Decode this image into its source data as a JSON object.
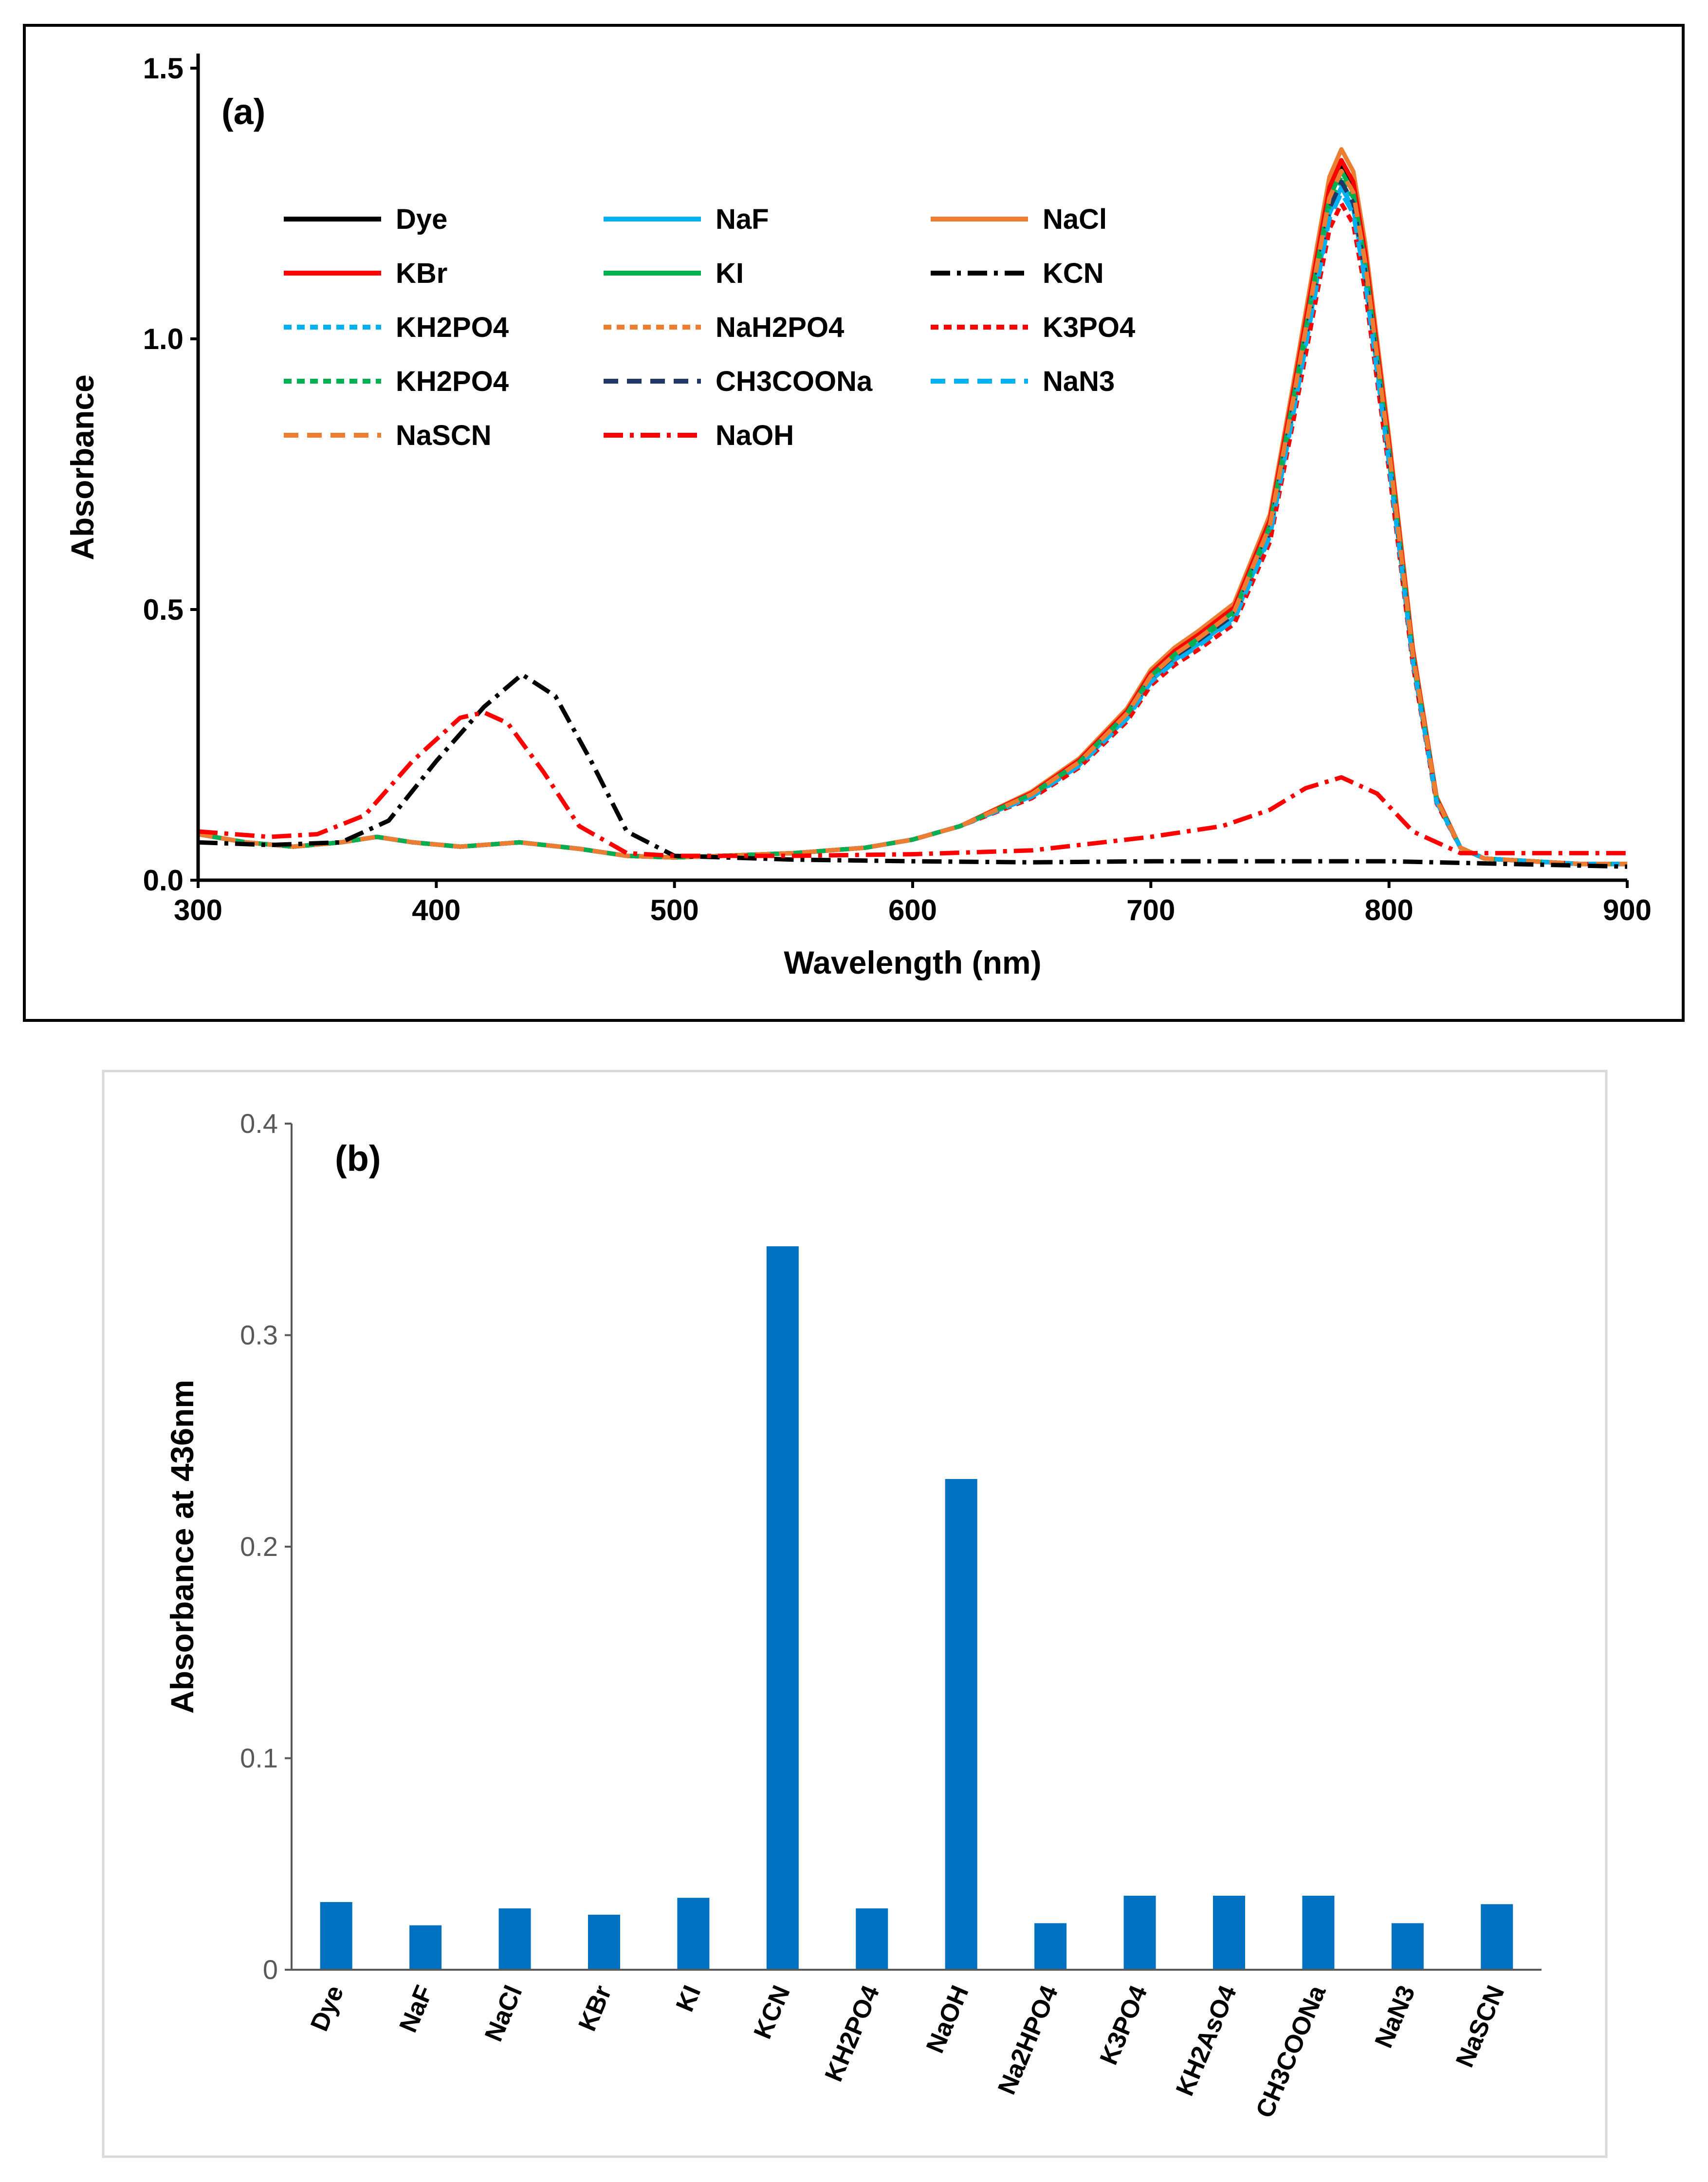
{
  "chart_data": [
    {
      "panel": "(a)",
      "type": "line",
      "title": "",
      "xlabel": "Wavelength (nm)",
      "ylabel": "Absorbance",
      "xlim": [
        300,
        900
      ],
      "ylim": [
        0,
        1.5
      ],
      "xticks": [
        300,
        400,
        500,
        600,
        700,
        800,
        900
      ],
      "xtick_labels": [
        "300",
        "400",
        "500",
        "600",
        "700",
        "800",
        "900"
      ],
      "yticks": [
        0,
        0.5,
        1.0,
        1.5
      ],
      "ytick_labels": [
        "0.0",
        "0.5",
        "1.0",
        "1.5"
      ],
      "grid": false,
      "legend_position": "top-left",
      "series": [
        {
          "name": "Dye",
          "color": "#000000",
          "dash": "solid",
          "profile": "main",
          "peak": 1.32
        },
        {
          "name": "NaF",
          "color": "#00b0f0",
          "dash": "solid",
          "profile": "main",
          "peak": 1.28
        },
        {
          "name": "NaCl",
          "color": "#ed7d31",
          "dash": "solid",
          "profile": "main",
          "peak": 1.35
        },
        {
          "name": "KBr",
          "color": "#ff0000",
          "dash": "solid",
          "profile": "main",
          "peak": 1.33
        },
        {
          "name": "KI",
          "color": "#00b050",
          "dash": "solid",
          "profile": "main",
          "peak": 1.31
        },
        {
          "name": "KCN",
          "color": "#000000",
          "dash": "dashdot",
          "profile": "kcn",
          "peak": 0.38
        },
        {
          "name": "KH2PO4",
          "color": "#00b0f0",
          "dash": "dot",
          "profile": "main",
          "peak": 1.29
        },
        {
          "name": "NaH2PO4",
          "color": "#ed7d31",
          "dash": "dot",
          "profile": "main",
          "peak": 1.3
        },
        {
          "name": "K3PO4",
          "color": "#ff0000",
          "dash": "dot",
          "profile": "main",
          "peak": 1.25
        },
        {
          "name": "KH2PO4",
          "color": "#00b050",
          "dash": "dot",
          "profile": "main",
          "peak": 1.3
        },
        {
          "name": "CH3COONa",
          "color": "#203864",
          "dash": "dash",
          "profile": "main",
          "peak": 1.29
        },
        {
          "name": "NaN3",
          "color": "#00b0f0",
          "dash": "dash",
          "profile": "main",
          "peak": 1.27
        },
        {
          "name": "NaSCN",
          "color": "#ed7d31",
          "dash": "dash",
          "profile": "main",
          "peak": 1.31
        },
        {
          "name": "NaOH",
          "color": "#ff0000",
          "dash": "dashdot",
          "profile": "naoh",
          "peak": 0.19
        }
      ],
      "profiles": {
        "main": {
          "x": [
            300,
            320,
            340,
            360,
            375,
            390,
            410,
            435,
            460,
            480,
            500,
            520,
            550,
            580,
            600,
            620,
            650,
            670,
            690,
            700,
            710,
            720,
            735,
            750,
            760,
            770,
            775,
            780,
            785,
            790,
            800,
            810,
            820,
            830,
            840,
            860,
            880,
            900
          ],
          "y": [
            0.085,
            0.07,
            0.062,
            0.07,
            0.08,
            0.07,
            0.062,
            0.07,
            0.058,
            0.045,
            0.042,
            0.045,
            0.05,
            0.06,
            0.075,
            0.1,
            0.16,
            0.22,
            0.31,
            0.38,
            0.42,
            0.45,
            0.5,
            0.66,
            0.9,
            1.15,
            1.27,
            1.32,
            1.28,
            1.15,
            0.8,
            0.42,
            0.15,
            0.06,
            0.04,
            0.035,
            0.03,
            0.03
          ]
        },
        "kcn": {
          "x": [
            300,
            330,
            360,
            380,
            400,
            420,
            436,
            450,
            465,
            480,
            500,
            550,
            600,
            650,
            700,
            750,
            800,
            850,
            900
          ],
          "y": [
            0.07,
            0.065,
            0.07,
            0.11,
            0.22,
            0.32,
            0.38,
            0.34,
            0.22,
            0.09,
            0.045,
            0.038,
            0.035,
            0.033,
            0.035,
            0.035,
            0.035,
            0.03,
            0.025
          ]
        },
        "naoh": {
          "x": [
            300,
            330,
            350,
            370,
            390,
            410,
            420,
            430,
            445,
            460,
            480,
            500,
            550,
            600,
            650,
            700,
            730,
            750,
            765,
            780,
            795,
            810,
            830,
            860,
            900
          ],
          "y": [
            0.09,
            0.08,
            0.085,
            0.12,
            0.22,
            0.3,
            0.31,
            0.29,
            0.2,
            0.1,
            0.05,
            0.045,
            0.045,
            0.048,
            0.055,
            0.08,
            0.1,
            0.13,
            0.17,
            0.19,
            0.16,
            0.09,
            0.05,
            0.05,
            0.05
          ]
        }
      }
    },
    {
      "panel": "(b)",
      "type": "bar",
      "title": "",
      "xlabel": "",
      "ylabel": "Absorbance at 436nm",
      "ylim": [
        0,
        0.4
      ],
      "yticks": [
        0,
        0.1,
        0.2,
        0.3,
        0.4
      ],
      "ytick_labels": [
        "0",
        "0.1",
        "0.2",
        "0.3",
        "0.4"
      ],
      "grid": false,
      "bar_color": "#0070c0",
      "categories": [
        "Dye",
        "NaF",
        "NaCl",
        "KBr",
        "KI",
        "KCN",
        "KH2PO4",
        "NaOH",
        "Na2HPO4",
        "K3PO4",
        "KH2AsO4",
        "CH3COONa",
        "NaN3",
        "NaSCN"
      ],
      "values": [
        0.032,
        0.021,
        0.029,
        0.026,
        0.034,
        0.342,
        0.029,
        0.232,
        0.022,
        0.035,
        0.035,
        0.035,
        0.022,
        0.031
      ]
    }
  ]
}
